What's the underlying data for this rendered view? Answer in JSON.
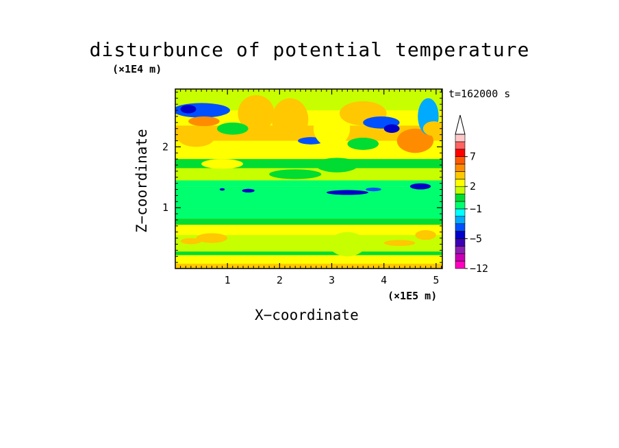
{
  "chart_data": {
    "type": "heatmap",
    "title": "disturbunce of potential temperature",
    "xlabel": "X−coordinate",
    "ylabel": "Z−coordinate",
    "x_unit": "(×1E5 m)",
    "y_unit": "(×1E4 m)",
    "time_label": "t=162000 s",
    "xlim": [
      0,
      5.12
    ],
    "ylim": [
      0,
      2.95
    ],
    "x_ticks": [
      1,
      2,
      3,
      4,
      5
    ],
    "x_tick_labels": [
      "1",
      "2",
      "3",
      "4",
      "5"
    ],
    "y_ticks": [
      1,
      2
    ],
    "y_tick_labels": [
      "1",
      "2"
    ],
    "colorbar": {
      "levels": [
        -12,
        -10,
        -8,
        -6,
        -5,
        -4,
        -3,
        -2,
        -1,
        0,
        1,
        2,
        3,
        4,
        5,
        7,
        9,
        11
      ],
      "colors": [
        "#ff00bf",
        "#c800b4",
        "#8c1eb4",
        "#3c00b4",
        "#0000c8",
        "#0050ff",
        "#00aaff",
        "#00ffff",
        "#00ff6e",
        "#00dc32",
        "#c8ff00",
        "#ffff00",
        "#ffc800",
        "#ff8c00",
        "#ff5a00",
        "#ff0000",
        "#ff6464",
        "#ffc8c8"
      ],
      "tick_labels": [
        "7",
        "2",
        "−1",
        "−5",
        "−12"
      ],
      "tick_values": [
        7,
        2,
        -1,
        -5,
        -12
      ],
      "extend": "max"
    },
    "bands": [
      {
        "z0": 0.0,
        "z1": 0.08,
        "value": 3
      },
      {
        "z0": 0.08,
        "z1": 0.22,
        "value": 2
      },
      {
        "z0": 0.22,
        "z1": 0.28,
        "value": 0
      },
      {
        "z0": 0.28,
        "z1": 0.55,
        "value": 1
      },
      {
        "z0": 0.55,
        "z1": 0.72,
        "value": 2
      },
      {
        "z0": 0.72,
        "z1": 0.82,
        "value": 0
      },
      {
        "z0": 0.82,
        "z1": 0.98,
        "value": -0.5
      },
      {
        "z0": 0.98,
        "z1": 1.35,
        "value": -1
      },
      {
        "z0": 1.35,
        "z1": 1.45,
        "value": -0.3
      },
      {
        "z0": 1.45,
        "z1": 1.65,
        "value": 1
      },
      {
        "z0": 1.65,
        "z1": 1.8,
        "value": 0
      },
      {
        "z0": 1.8,
        "z1": 2.1,
        "value": 2
      },
      {
        "z0": 2.1,
        "z1": 2.35,
        "value": 3
      },
      {
        "z0": 2.35,
        "z1": 2.6,
        "value": 2
      },
      {
        "z0": 2.6,
        "z1": 2.95,
        "value": 1
      }
    ],
    "features": [
      {
        "x": 0.5,
        "z": 2.6,
        "rx": 0.55,
        "rz": 0.12,
        "value": -4
      },
      {
        "x": 0.25,
        "z": 2.62,
        "rx": 0.15,
        "rz": 0.07,
        "value": -5
      },
      {
        "x": 0.4,
        "z": 2.15,
        "rx": 0.35,
        "rz": 0.15,
        "value": 3
      },
      {
        "x": 0.55,
        "z": 2.42,
        "rx": 0.3,
        "rz": 0.08,
        "value": 4
      },
      {
        "x": 1.55,
        "z": 2.55,
        "rx": 0.35,
        "rz": 0.3,
        "value": 3
      },
      {
        "x": 1.1,
        "z": 2.3,
        "rx": 0.3,
        "rz": 0.1,
        "value": 0
      },
      {
        "x": 2.2,
        "z": 2.45,
        "rx": 0.35,
        "rz": 0.35,
        "value": 3
      },
      {
        "x": 2.6,
        "z": 2.1,
        "rx": 0.25,
        "rz": 0.06,
        "value": -4
      },
      {
        "x": 2.85,
        "z": 2.15,
        "rx": 0.15,
        "rz": 0.05,
        "value": -5
      },
      {
        "x": 3.0,
        "z": 2.3,
        "rx": 0.35,
        "rz": 0.3,
        "value": 2
      },
      {
        "x": 3.6,
        "z": 2.55,
        "rx": 0.45,
        "rz": 0.2,
        "value": 3
      },
      {
        "x": 3.95,
        "z": 2.4,
        "rx": 0.35,
        "rz": 0.1,
        "value": -4
      },
      {
        "x": 4.15,
        "z": 2.3,
        "rx": 0.15,
        "rz": 0.07,
        "value": -5
      },
      {
        "x": 3.6,
        "z": 2.05,
        "rx": 0.3,
        "rz": 0.1,
        "value": 0
      },
      {
        "x": 4.6,
        "z": 2.1,
        "rx": 0.35,
        "rz": 0.2,
        "value": 4
      },
      {
        "x": 4.85,
        "z": 2.5,
        "rx": 0.2,
        "rz": 0.3,
        "value": -3
      },
      {
        "x": 4.95,
        "z": 2.3,
        "rx": 0.2,
        "rz": 0.12,
        "value": 3
      },
      {
        "x": 0.9,
        "z": 1.72,
        "rx": 0.4,
        "rz": 0.08,
        "value": 2
      },
      {
        "x": 2.3,
        "z": 1.55,
        "rx": 0.5,
        "rz": 0.08,
        "value": 0
      },
      {
        "x": 3.1,
        "z": 1.7,
        "rx": 0.4,
        "rz": 0.12,
        "value": 0
      },
      {
        "x": 1.4,
        "z": 1.28,
        "rx": 0.12,
        "rz": 0.03,
        "value": -5
      },
      {
        "x": 0.9,
        "z": 1.3,
        "rx": 0.05,
        "rz": 0.02,
        "value": -5
      },
      {
        "x": 3.3,
        "z": 1.25,
        "rx": 0.4,
        "rz": 0.04,
        "value": -5
      },
      {
        "x": 4.7,
        "z": 1.35,
        "rx": 0.2,
        "rz": 0.05,
        "value": -5
      },
      {
        "x": 3.8,
        "z": 1.3,
        "rx": 0.15,
        "rz": 0.03,
        "value": -4
      },
      {
        "x": 0.7,
        "z": 0.5,
        "rx": 0.3,
        "rz": 0.08,
        "value": 3
      },
      {
        "x": 0.3,
        "z": 0.45,
        "rx": 0.2,
        "rz": 0.05,
        "value": 3
      },
      {
        "x": 4.3,
        "z": 0.42,
        "rx": 0.3,
        "rz": 0.05,
        "value": 3
      },
      {
        "x": 3.3,
        "z": 0.4,
        "rx": 0.35,
        "rz": 0.2,
        "value": 1
      },
      {
        "x": 4.8,
        "z": 0.55,
        "rx": 0.2,
        "rz": 0.08,
        "value": 3
      }
    ]
  }
}
